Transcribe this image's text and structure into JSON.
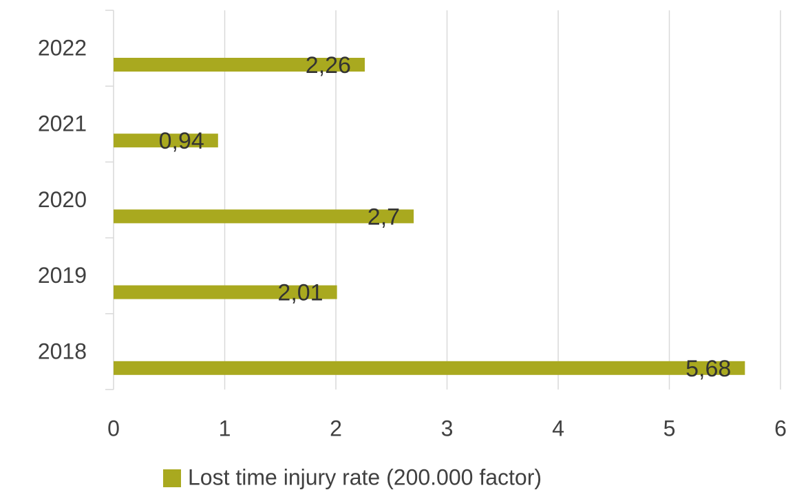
{
  "chart_data": {
    "type": "bar",
    "orientation": "horizontal",
    "categories": [
      "2022",
      "2021",
      "2020",
      "2019",
      "2018"
    ],
    "series": [
      {
        "name": "Lost time injury rate (200.000 factor)",
        "color": "#a9a91f",
        "values": [
          2.26,
          0.94,
          2.7,
          2.01,
          5.68
        ],
        "value_labels": [
          "2,26",
          "0,94",
          "2,7",
          "2,01",
          "5,68"
        ]
      }
    ],
    "xlim": [
      0,
      6
    ],
    "xticks": [
      0,
      1,
      2,
      3,
      4,
      5,
      6
    ],
    "grid": true,
    "legend": "bottom"
  }
}
